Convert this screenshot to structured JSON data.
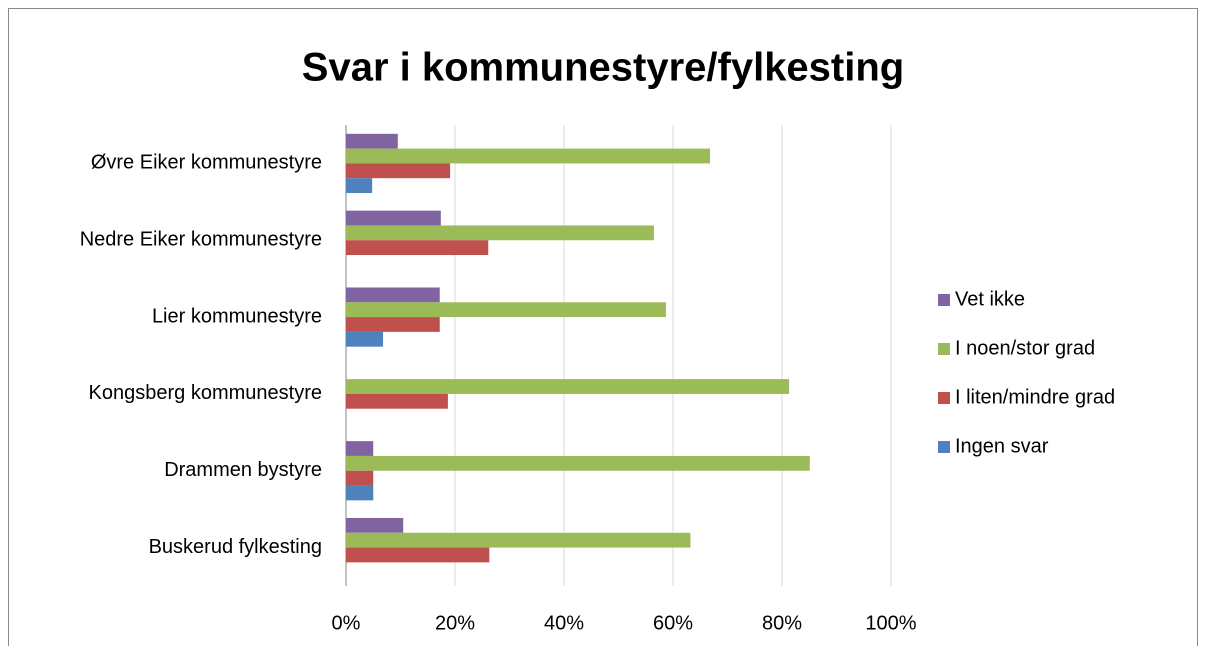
{
  "chart_data": {
    "type": "barh",
    "title": "Svar i kommunestyre/fylkesting",
    "categories": [
      "Øvre Eiker kommunestyre",
      "Nedre Eiker kommunestyre",
      "Lier kommunestyre",
      "Kongsberg kommunestyre",
      "Drammen bystyre",
      "Buskerud fylkesting"
    ],
    "series": [
      {
        "name": "Vet ikke",
        "color": "#8064A2",
        "values": [
          9.5,
          17.4,
          17.2,
          0,
          5,
          10.5
        ]
      },
      {
        "name": "I noen/stor grad",
        "color": "#9BBB59",
        "values": [
          66.8,
          56.5,
          58.7,
          81.3,
          85.1,
          63.2
        ]
      },
      {
        "name": "I liten/mindre grad",
        "color": "#C0504D",
        "values": [
          19.1,
          26.1,
          17.2,
          18.7,
          5,
          26.3
        ]
      },
      {
        "name": "Ingen svar",
        "color": "#4F81BD",
        "values": [
          4.8,
          0,
          6.8,
          0,
          5,
          0
        ]
      }
    ],
    "xlim": [
      0,
      100
    ],
    "xticks": [
      {
        "value": 0,
        "label": "0%"
      },
      {
        "value": 20,
        "label": "20%"
      },
      {
        "value": 40,
        "label": "40%"
      },
      {
        "value": 60,
        "label": "60%"
      },
      {
        "value": 80,
        "label": "80%"
      },
      {
        "value": 100,
        "label": "100%"
      }
    ],
    "grid": true,
    "legend": "right"
  }
}
